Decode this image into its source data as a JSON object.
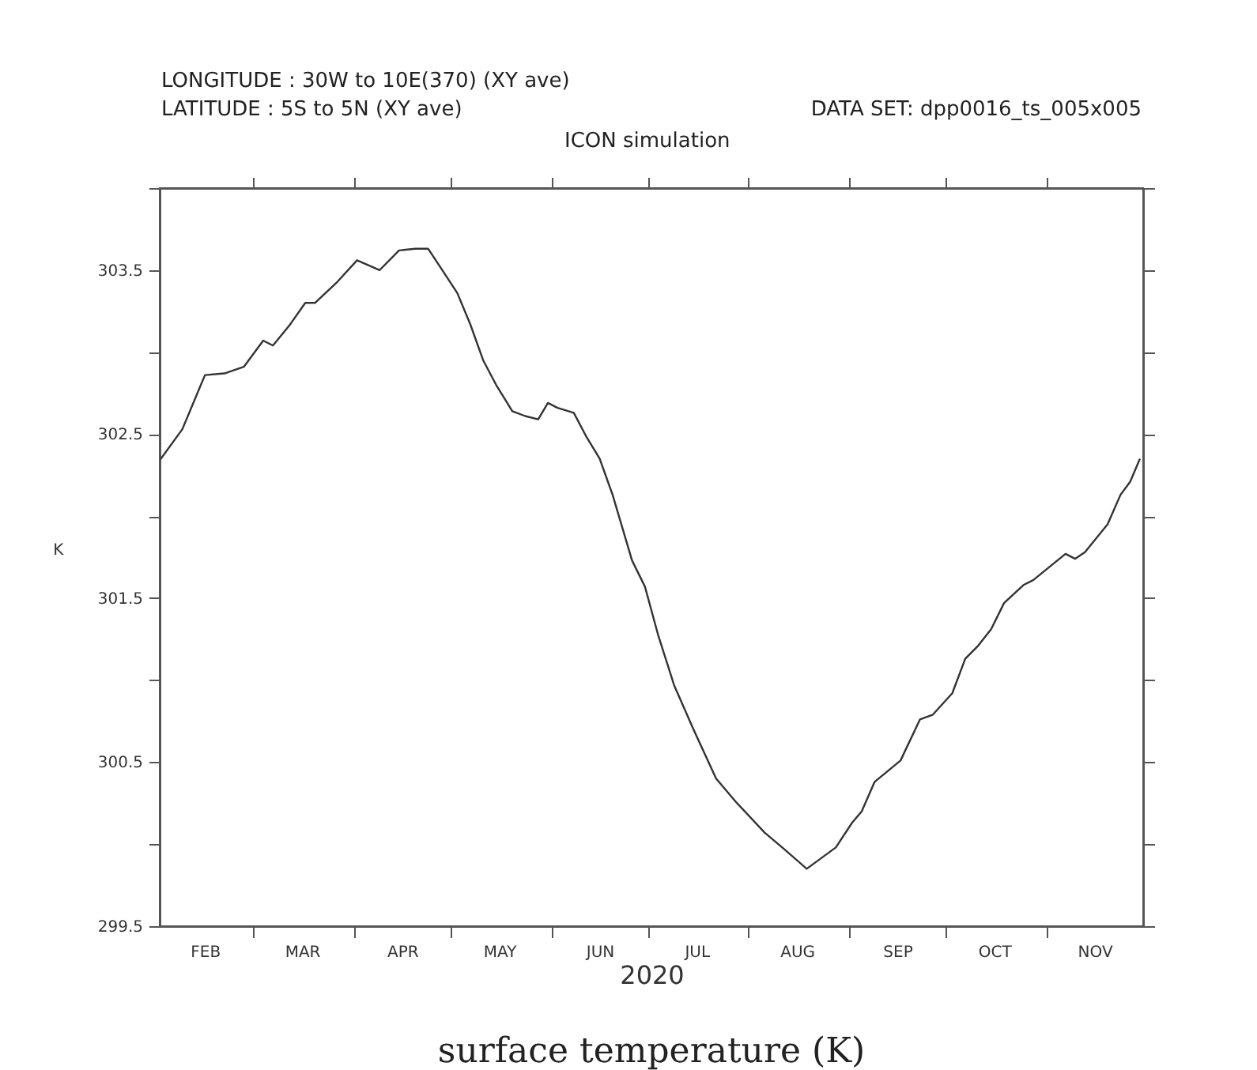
{
  "chart_data": {
    "type": "line",
    "title": "surface temperature (K)",
    "subtitle": "ICON simulation",
    "xlabel": "2020",
    "ylabel": "K",
    "annotations": [
      "LONGITUDE : 30W to 10E(370) (XY ave)",
      "LATITUDE : 5S to 5N (XY ave)",
      "DATA SET: dpp0016_ts_005x005"
    ],
    "x": [
      "2020-02-01",
      "2020-02-08",
      "2020-02-15",
      "2020-02-21",
      "2020-02-27",
      "2020-03-04",
      "2020-03-07",
      "2020-03-12",
      "2020-03-17",
      "2020-03-20",
      "2020-03-27",
      "2020-04-02",
      "2020-04-09",
      "2020-04-15",
      "2020-04-20",
      "2020-04-24",
      "2020-04-28",
      "2020-05-03",
      "2020-05-07",
      "2020-05-11",
      "2020-05-15",
      "2020-05-20",
      "2020-05-24",
      "2020-05-28",
      "2020-05-31",
      "2020-06-03",
      "2020-06-08",
      "2020-06-12",
      "2020-06-16",
      "2020-06-20",
      "2020-06-26",
      "2020-06-30",
      "2020-07-04",
      "2020-07-09",
      "2020-07-15",
      "2020-07-22",
      "2020-07-28",
      "2020-08-06",
      "2020-08-12",
      "2020-08-19",
      "2020-08-28",
      "2020-09-02",
      "2020-09-05",
      "2020-09-09",
      "2020-09-17",
      "2020-09-23",
      "2020-09-27",
      "2020-10-03",
      "2020-10-07",
      "2020-10-11",
      "2020-10-15",
      "2020-10-19",
      "2020-10-25",
      "2020-10-28",
      "2020-11-07",
      "2020-11-10",
      "2020-11-13",
      "2020-11-20",
      "2020-11-24",
      "2020-11-27",
      "2020-11-30"
    ],
    "values": [
      302.34,
      302.53,
      302.86,
      302.87,
      302.91,
      303.07,
      303.04,
      303.16,
      303.3,
      303.3,
      303.43,
      303.56,
      303.5,
      303.62,
      303.63,
      303.63,
      303.51,
      303.36,
      303.17,
      302.95,
      302.8,
      302.64,
      302.61,
      302.59,
      302.69,
      302.66,
      302.63,
      302.48,
      302.35,
      302.13,
      301.73,
      301.57,
      301.28,
      300.97,
      300.7,
      300.4,
      300.26,
      300.07,
      299.97,
      299.85,
      299.98,
      300.13,
      300.2,
      300.38,
      300.51,
      300.76,
      300.79,
      300.92,
      301.13,
      301.21,
      301.31,
      301.47,
      301.58,
      301.61,
      301.77,
      301.74,
      301.78,
      301.95,
      302.13,
      302.21,
      302.35
    ],
    "color": "#333333",
    "xlim": [
      "2020-02-01",
      "2020-12-01"
    ],
    "xticks": [
      {
        "value": "2020-02-15",
        "label": "FEB"
      },
      {
        "value": "2020-03-01",
        "label": null
      },
      {
        "value": "2020-03-16",
        "label": "MAR"
      },
      {
        "value": "2020-04-01",
        "label": null
      },
      {
        "value": "2020-04-16",
        "label": "APR"
      },
      {
        "value": "2020-05-01",
        "label": null
      },
      {
        "value": "2020-05-16",
        "label": "MAY"
      },
      {
        "value": "2020-06-01",
        "label": null
      },
      {
        "value": "2020-06-16",
        "label": "JUN"
      },
      {
        "value": "2020-07-01",
        "label": null
      },
      {
        "value": "2020-07-16",
        "label": "JUL"
      },
      {
        "value": "2020-08-01",
        "label": null
      },
      {
        "value": "2020-08-16",
        "label": "AUG"
      },
      {
        "value": "2020-09-01",
        "label": null
      },
      {
        "value": "2020-09-16",
        "label": "SEP"
      },
      {
        "value": "2020-10-01",
        "label": null
      },
      {
        "value": "2020-10-16",
        "label": "OCT"
      },
      {
        "value": "2020-11-01",
        "label": null
      },
      {
        "value": "2020-11-16",
        "label": "NOV"
      }
    ],
    "ylim": [
      299.5,
      304.0
    ],
    "yticks": [
      {
        "value": 299.5,
        "label": "299.5"
      },
      {
        "value": 300,
        "label": null
      },
      {
        "value": 300.5,
        "label": "300.5"
      },
      {
        "value": 301,
        "label": null
      },
      {
        "value": 301.5,
        "label": "301.5"
      },
      {
        "value": 302,
        "label": null
      },
      {
        "value": 302.5,
        "label": "302.5"
      },
      {
        "value": 303,
        "label": null
      },
      {
        "value": 303.5,
        "label": "303.5"
      },
      {
        "value": 304,
        "label": null
      }
    ],
    "grid": false,
    "marker": "none",
    "line_style": "solid"
  }
}
